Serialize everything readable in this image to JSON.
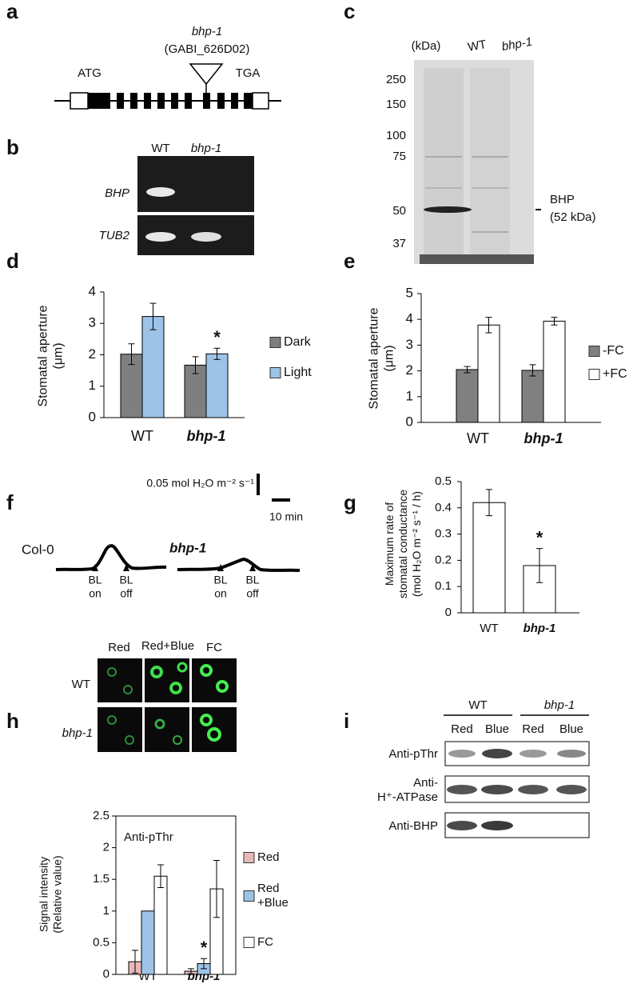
{
  "letters": [
    "a",
    "b",
    "c",
    "d",
    "e",
    "f",
    "g",
    "h",
    "i"
  ],
  "panels": {
    "a": {
      "insertion": "bhp-1",
      "insertion_id": "(GABI_626D02)",
      "start": "ATG",
      "stop": "TGA"
    },
    "b": {
      "lanes": [
        "WT",
        "bhp-1"
      ],
      "genes": [
        "BHP",
        "TUB2"
      ]
    },
    "c": {
      "unit": "(kDa)",
      "lanes": [
        "WT",
        "bhp-1"
      ],
      "markers": [
        250,
        150,
        100,
        75,
        50,
        37
      ],
      "band": "BHP",
      "band_size": "(52 kDa)"
    },
    "f": {
      "scale": "0.05 mol H₂O m⁻² s⁻¹",
      "time": "10 min",
      "traces": [
        "Col-0",
        "bhp-1"
      ],
      "events": [
        "BL\non",
        "BL\noff"
      ]
    },
    "h": {
      "columns": [
        "Red",
        "Red+Blue",
        "FC"
      ],
      "rows": [
        "WT",
        "bhp-1"
      ]
    },
    "i": {
      "groups": [
        "WT",
        "bhp-1"
      ],
      "lanes": [
        "Red",
        "Blue",
        "Red",
        "Blue"
      ],
      "antibodies": [
        "Anti-pThr",
        "Anti-\nH⁺-ATPase",
        "Anti-BHP"
      ]
    }
  },
  "chart_data": [
    {
      "type": "bar",
      "y_label": "Stomatal aperture\n(μm)",
      "categories": [
        "WT",
        "bhp-1"
      ],
      "series": [
        {
          "name": "Dark",
          "color": "#7f7f7f",
          "values": [
            2.02,
            1.67
          ],
          "errors": [
            0.33,
            0.27
          ]
        },
        {
          "name": "Light",
          "color": "#9dc3e6",
          "values": [
            3.22,
            2.03
          ],
          "errors": [
            0.42,
            0.18
          ]
        }
      ],
      "ylim": [
        0,
        4
      ],
      "yticks": [
        0,
        1,
        2,
        3,
        4
      ],
      "annotations": [
        "*"
      ]
    },
    {
      "type": "bar",
      "y_label": "Stomatal aperture\n(μm)",
      "categories": [
        "WT",
        "bhp-1"
      ],
      "series": [
        {
          "name": "-FC",
          "color": "#808080",
          "values": [
            2.05,
            2.02
          ],
          "errors": [
            0.12,
            0.22
          ]
        },
        {
          "name": "+FC",
          "color": "#ffffff",
          "values": [
            3.78,
            3.93
          ],
          "errors": [
            0.3,
            0.15
          ]
        }
      ],
      "ylim": [
        0,
        5
      ],
      "yticks": [
        0,
        1,
        2,
        3,
        4,
        5
      ]
    },
    {
      "type": "bar",
      "y_label": "Maximum rate of\nstomatal conductance\n(mol H₂O m⁻² s⁻¹ / h)",
      "categories": [
        "WT",
        "bhp-1"
      ],
      "color": "#ffffff",
      "values": [
        0.42,
        0.18
      ],
      "errors": [
        0.05,
        0.065
      ],
      "ylim": [
        0,
        0.5
      ],
      "yticks": [
        0,
        0.1,
        0.2,
        0.3,
        0.4,
        0.5
      ],
      "annotations": [
        "*"
      ]
    },
    {
      "type": "bar",
      "y_label": "Signal intensity\n(Relative value)",
      "inner_label": "Anti-pThr",
      "categories": [
        "WT",
        "bhp-1"
      ],
      "series": [
        {
          "name": "Red",
          "color": "#e6b9b8",
          "values": [
            0.2,
            0.05
          ],
          "errors": [
            0.18,
            0.04
          ]
        },
        {
          "name": "Red\n+Blue",
          "color": "#9dc3e6",
          "values": [
            1,
            0.17
          ],
          "errors": [
            null,
            0.08
          ]
        },
        {
          "name": "FC",
          "color": "#ffffff",
          "values": [
            1.55,
            1.35
          ],
          "errors": [
            0.18,
            0.45
          ]
        }
      ],
      "ylim": [
        0,
        2.5
      ],
      "yticks": [
        0,
        0.5,
        1,
        1.5,
        2,
        2.5
      ],
      "annotations": [
        "*"
      ]
    }
  ]
}
